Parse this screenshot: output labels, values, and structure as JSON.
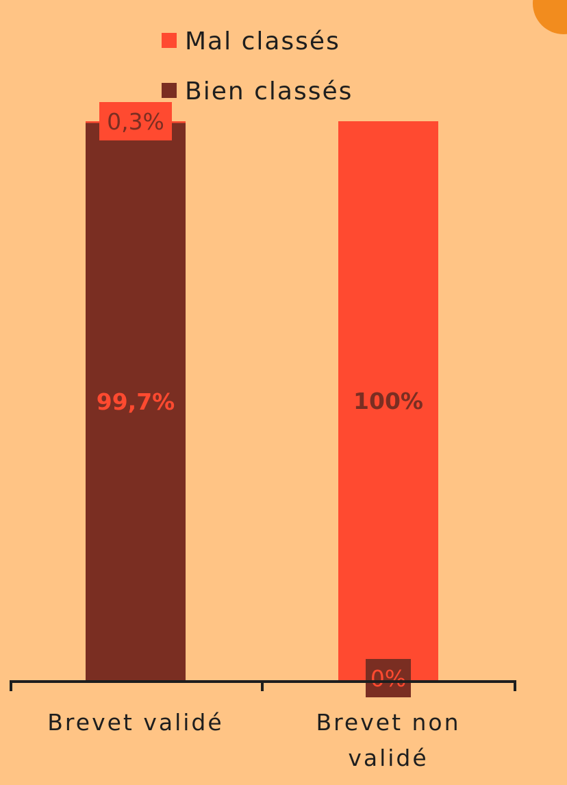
{
  "colors": {
    "background": "#FFC485",
    "mal_classes": "#FF4A30",
    "bien_classes": "#7A2E22",
    "axis": "#1e1e1e"
  },
  "chart_data": {
    "type": "bar",
    "stacked": true,
    "normalized_percent": true,
    "title": "",
    "xlabel": "",
    "ylabel": "",
    "ylim": [
      0,
      100
    ],
    "grid": false,
    "legend_position": "top-center",
    "categories": [
      "Brevet validé",
      "Brevet non validé"
    ],
    "series": [
      {
        "name": "Bien classés",
        "values": [
          99.7,
          0
        ],
        "labels": [
          "99,7%",
          "0%"
        ],
        "color": "#7A2E22"
      },
      {
        "name": "Mal classés",
        "values": [
          0.3,
          100
        ],
        "labels": [
          "0,3%",
          "100%"
        ],
        "color": "#FF4A30"
      }
    ],
    "legend": [
      "Mal classés",
      "Bien classés"
    ]
  }
}
